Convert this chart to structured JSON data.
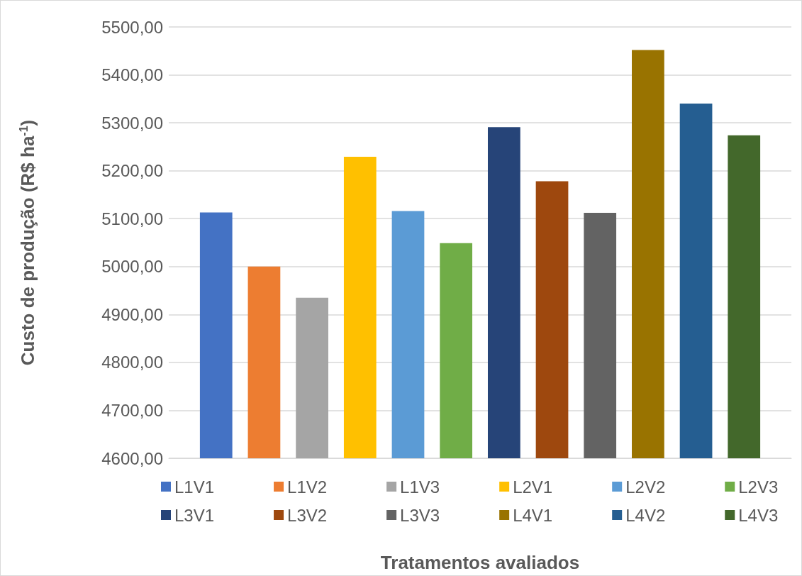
{
  "chart_data": {
    "type": "bar",
    "xlabel": "Tratamentos avaliados",
    "ylabel": "Custo de produção (R$ ha$^{-1}$)",
    "categories": [
      null
    ],
    "series": [
      {
        "name": "L1V1",
        "color": "#4472c4",
        "values": [
          5113
        ]
      },
      {
        "name": "L1V2",
        "color": "#ed7d31",
        "values": [
          5000
        ]
      },
      {
        "name": "L1V3",
        "color": "#a5a5a5",
        "values": [
          4935
        ]
      },
      {
        "name": "L2V1",
        "color": "#ffc000",
        "values": [
          5229
        ]
      },
      {
        "name": "L2V2",
        "color": "#5b9bd5",
        "values": [
          5116
        ]
      },
      {
        "name": "L2V3",
        "color": "#70ad47",
        "values": [
          5049
        ]
      },
      {
        "name": "L3V1",
        "color": "#264478",
        "values": [
          5291
        ]
      },
      {
        "name": "L3V2",
        "color": "#9e480e",
        "values": [
          5178
        ]
      },
      {
        "name": "L3V3",
        "color": "#636363",
        "values": [
          5112
        ]
      },
      {
        "name": "L4V1",
        "color": "#997300",
        "values": [
          5452
        ]
      },
      {
        "name": "L4V2",
        "color": "#255e91",
        "values": [
          5340
        ]
      },
      {
        "name": "L4V3",
        "color": "#43682b",
        "values": [
          5274
        ]
      }
    ],
    "ylim": [
      4600,
      5500
    ],
    "yticks": [
      {
        "value": 4600,
        "label": "4600,00"
      },
      {
        "value": 4700,
        "label": "4700,00"
      },
      {
        "value": 4800,
        "label": "4800,00"
      },
      {
        "value": 4900,
        "label": "4900,00"
      },
      {
        "value": 5000,
        "label": "5000,00"
      },
      {
        "value": 5100,
        "label": "5100,00"
      },
      {
        "value": 5200,
        "label": "5200,00"
      },
      {
        "value": 5300,
        "label": "5300,00"
      },
      {
        "value": 5400,
        "label": "5400,00"
      },
      {
        "value": 5500,
        "label": "5500,00"
      }
    ],
    "grid": "y",
    "legend": "bottom",
    "tick_labels": "y"
  }
}
